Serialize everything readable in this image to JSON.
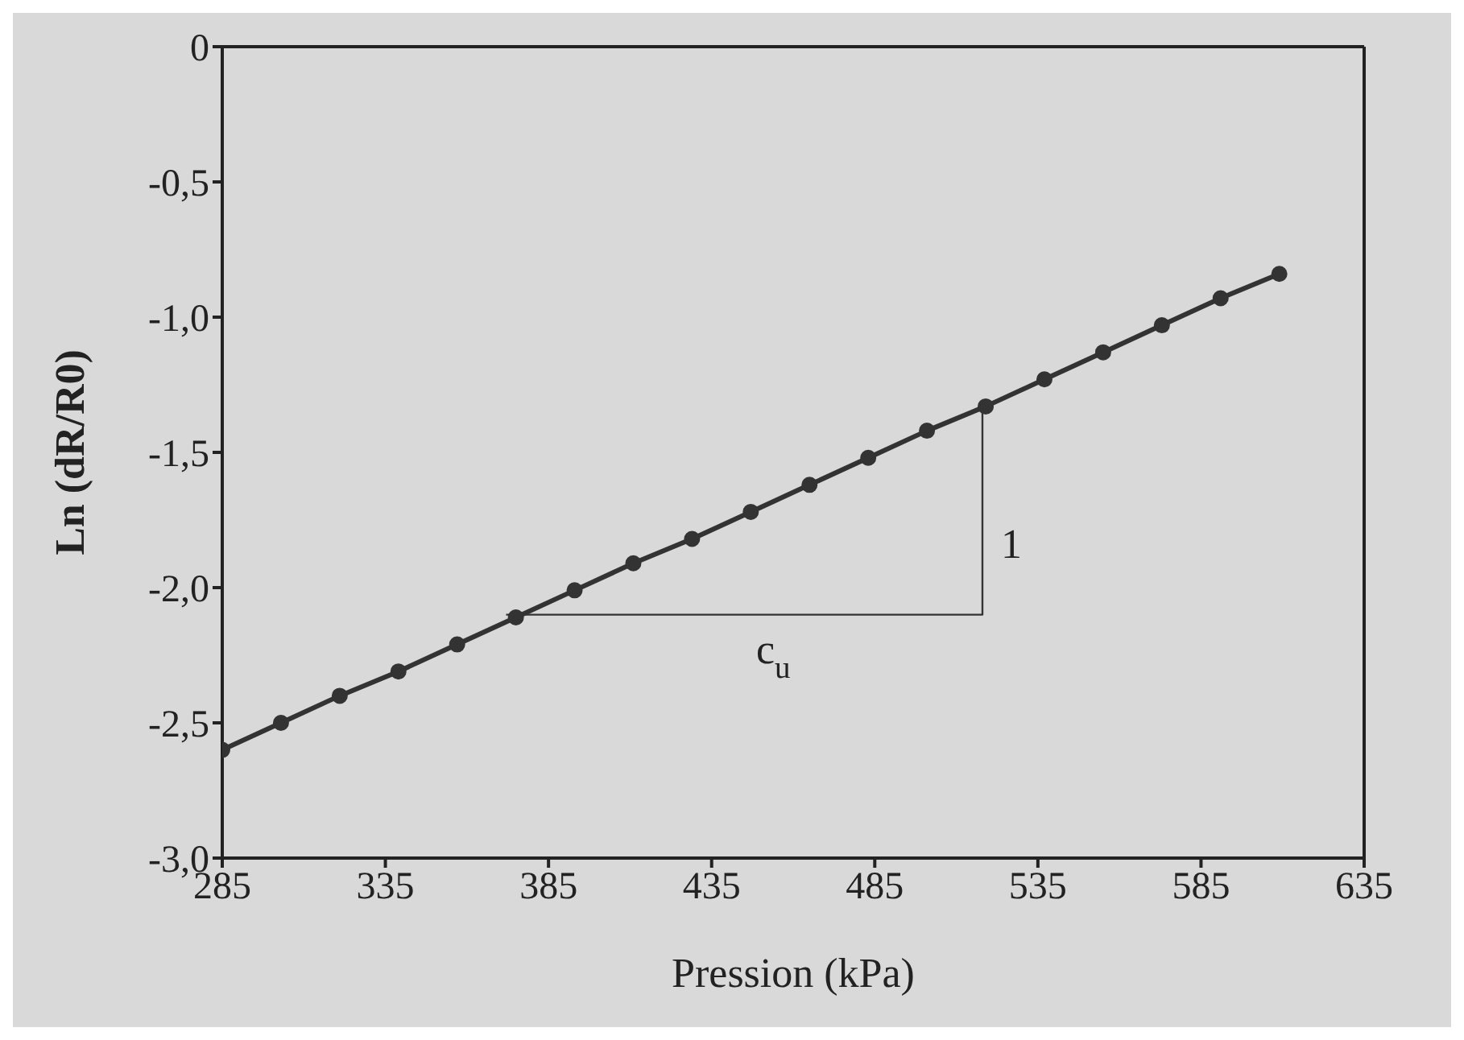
{
  "chart_data": {
    "type": "line",
    "xlabel": "Pression (kPa)",
    "ylabel": "Ln (dR/R0)",
    "xlim": [
      285,
      635
    ],
    "xticks": [
      285,
      335,
      385,
      435,
      485,
      535,
      585,
      635
    ],
    "ylim": [
      -3,
      0
    ],
    "yticks": [
      {
        "value": -3,
        "label": "-3,0"
      },
      {
        "value": -2.5,
        "label": "-2,5"
      },
      {
        "value": -2,
        "label": "-2,0"
      },
      {
        "value": -1.5,
        "label": "-1,5"
      },
      {
        "value": -1,
        "label": "-1,0"
      },
      {
        "value": -0.5,
        "label": "-0,5"
      },
      {
        "value": 0,
        "label": "0"
      }
    ],
    "grid": false,
    "series": [
      {
        "color": "#333333",
        "marker": "circle",
        "x": [
          285,
          303,
          321,
          339,
          357,
          375,
          393,
          411,
          429,
          447,
          465,
          483,
          501,
          519,
          537,
          555,
          573,
          591,
          609
        ],
        "values": [
          -2.6,
          -2.5,
          -2.4,
          -2.31,
          -2.21,
          -2.11,
          -2.01,
          -1.91,
          -1.82,
          -1.72,
          -1.62,
          -1.52,
          -1.42,
          -1.33,
          -1.23,
          -1.13,
          -1.03,
          -0.93,
          -0.84
        ]
      },
      {
        "type": "line",
        "color": "#333333",
        "marker": "none",
        "x": [
          372,
          518,
          518
        ],
        "values": [
          -2.1,
          -2.1,
          -1.32
        ]
      }
    ],
    "annotations": [
      {
        "text": "1",
        "x": 518,
        "y": -1.71
      },
      {
        "text": "c$_{u}$",
        "x": 445,
        "y": -2.1
      }
    ]
  }
}
